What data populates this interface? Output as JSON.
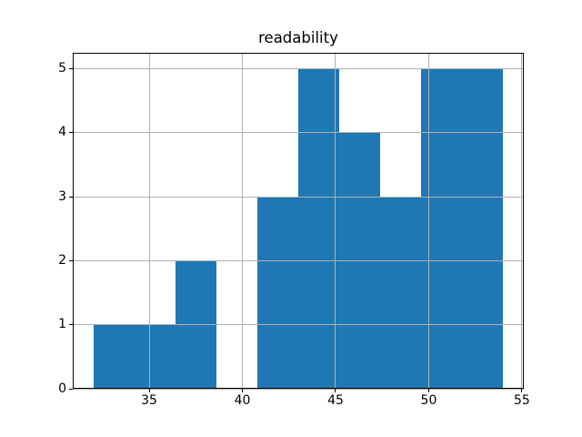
{
  "title": "readability",
  "chart_data": {
    "type": "bar",
    "subtype": "histogram",
    "title": "readability",
    "xlabel": "",
    "ylabel": "",
    "bin_edges": [
      32.0,
      34.2,
      36.4,
      38.6,
      40.8,
      43.0,
      45.2,
      47.4,
      49.6,
      51.8,
      54.0
    ],
    "counts": [
      1,
      1,
      2,
      0,
      3,
      5,
      4,
      3,
      5,
      5
    ],
    "total_count": 29,
    "xticks": [
      35,
      40,
      45,
      50,
      55
    ],
    "yticks": [
      0,
      1,
      2,
      3,
      4,
      5
    ],
    "xlim": [
      30.9,
      55.1
    ],
    "ylim": [
      0,
      5.25
    ],
    "grid": true,
    "grid_drawn_over_bars": true,
    "legend": false,
    "bar_color": "#1f77b4",
    "grid_color": "#b0b0b0",
    "spine_color": "#000000",
    "background_color": "#ffffff"
  }
}
